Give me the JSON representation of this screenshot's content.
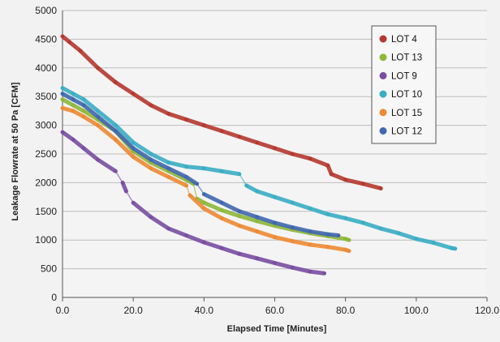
{
  "chart_data": {
    "type": "scatter",
    "title": "",
    "xlabel": "Elapsed Time [Minutes]",
    "ylabel": "Leakage Flowrate at 50 Pa [CFM]",
    "xlim": [
      0,
      120
    ],
    "ylim": [
      0,
      5000
    ],
    "x_ticks": [
      "0.0",
      "20.0",
      "40.0",
      "60.0",
      "80.0",
      "100.0",
      "120.0"
    ],
    "y_ticks": [
      "0",
      "500",
      "1000",
      "1500",
      "2000",
      "2500",
      "3000",
      "3500",
      "4000",
      "4500",
      "5000"
    ],
    "grid": true,
    "legend_position": "top-right",
    "series": [
      {
        "name": "LOT 4",
        "color": "#b5392f",
        "points": [
          [
            0,
            4550
          ],
          [
            2,
            4450
          ],
          [
            5,
            4300
          ],
          [
            10,
            4000
          ],
          [
            15,
            3750
          ],
          [
            20,
            3550
          ],
          [
            25,
            3350
          ],
          [
            30,
            3200
          ],
          [
            35,
            3100
          ],
          [
            40,
            3000
          ],
          [
            45,
            2900
          ],
          [
            50,
            2800
          ],
          [
            55,
            2700
          ],
          [
            60,
            2600
          ],
          [
            65,
            2500
          ],
          [
            70,
            2420
          ],
          [
            75,
            2300
          ],
          [
            76,
            2150
          ],
          [
            80,
            2050
          ],
          [
            85,
            1980
          ],
          [
            90,
            1900
          ]
        ]
      },
      {
        "name": "LOT 13",
        "color": "#8db83a",
        "points": [
          [
            0,
            3450
          ],
          [
            3,
            3350
          ],
          [
            6,
            3250
          ],
          [
            10,
            3100
          ],
          [
            15,
            2900
          ],
          [
            20,
            2550
          ],
          [
            25,
            2350
          ],
          [
            30,
            2200
          ],
          [
            35,
            2050
          ],
          [
            37,
            1980
          ],
          [
            38,
            1720
          ],
          [
            40,
            1650
          ],
          [
            45,
            1520
          ],
          [
            50,
            1420
          ],
          [
            55,
            1330
          ],
          [
            60,
            1250
          ],
          [
            65,
            1180
          ],
          [
            70,
            1120
          ],
          [
            75,
            1070
          ],
          [
            80,
            1020
          ],
          [
            81,
            1000
          ]
        ]
      },
      {
        "name": "LOT 9",
        "color": "#7a4ea3",
        "points": [
          [
            0,
            2880
          ],
          [
            3,
            2750
          ],
          [
            6,
            2600
          ],
          [
            10,
            2400
          ],
          [
            15,
            2200
          ],
          [
            17,
            2000
          ],
          [
            18,
            1850
          ],
          [
            20,
            1650
          ],
          [
            25,
            1400
          ],
          [
            30,
            1200
          ],
          [
            35,
            1080
          ],
          [
            40,
            960
          ],
          [
            45,
            860
          ],
          [
            50,
            760
          ],
          [
            55,
            680
          ],
          [
            60,
            600
          ],
          [
            65,
            520
          ],
          [
            70,
            450
          ],
          [
            74,
            420
          ]
        ]
      },
      {
        "name": "LOT 10",
        "color": "#3aaec4",
        "points": [
          [
            0,
            3650
          ],
          [
            3,
            3550
          ],
          [
            6,
            3450
          ],
          [
            10,
            3250
          ],
          [
            15,
            3000
          ],
          [
            20,
            2700
          ],
          [
            25,
            2500
          ],
          [
            30,
            2350
          ],
          [
            35,
            2280
          ],
          [
            40,
            2250
          ],
          [
            45,
            2200
          ],
          [
            50,
            2150
          ],
          [
            52,
            1950
          ],
          [
            55,
            1850
          ],
          [
            60,
            1750
          ],
          [
            65,
            1650
          ],
          [
            70,
            1550
          ],
          [
            75,
            1450
          ],
          [
            80,
            1380
          ],
          [
            85,
            1300
          ],
          [
            90,
            1200
          ],
          [
            95,
            1120
          ],
          [
            100,
            1020
          ],
          [
            105,
            950
          ],
          [
            110,
            860
          ],
          [
            111,
            850
          ]
        ]
      },
      {
        "name": "LOT 15",
        "color": "#ee8a34",
        "points": [
          [
            0,
            3300
          ],
          [
            3,
            3250
          ],
          [
            6,
            3150
          ],
          [
            10,
            3000
          ],
          [
            15,
            2750
          ],
          [
            20,
            2450
          ],
          [
            25,
            2250
          ],
          [
            30,
            2100
          ],
          [
            35,
            1950
          ],
          [
            36,
            1780
          ],
          [
            40,
            1550
          ],
          [
            45,
            1380
          ],
          [
            50,
            1250
          ],
          [
            55,
            1150
          ],
          [
            60,
            1050
          ],
          [
            65,
            980
          ],
          [
            70,
            920
          ],
          [
            75,
            880
          ],
          [
            80,
            830
          ],
          [
            81,
            810
          ]
        ]
      },
      {
        "name": "LOT 12",
        "color": "#4168b0",
        "points": [
          [
            0,
            3550
          ],
          [
            3,
            3450
          ],
          [
            6,
            3350
          ],
          [
            10,
            3150
          ],
          [
            15,
            2900
          ],
          [
            20,
            2600
          ],
          [
            25,
            2400
          ],
          [
            30,
            2250
          ],
          [
            35,
            2100
          ],
          [
            38,
            1980
          ],
          [
            40,
            1800
          ],
          [
            45,
            1650
          ],
          [
            50,
            1500
          ],
          [
            55,
            1400
          ],
          [
            60,
            1300
          ],
          [
            65,
            1220
          ],
          [
            70,
            1150
          ],
          [
            75,
            1100
          ],
          [
            78,
            1080
          ]
        ]
      }
    ]
  }
}
